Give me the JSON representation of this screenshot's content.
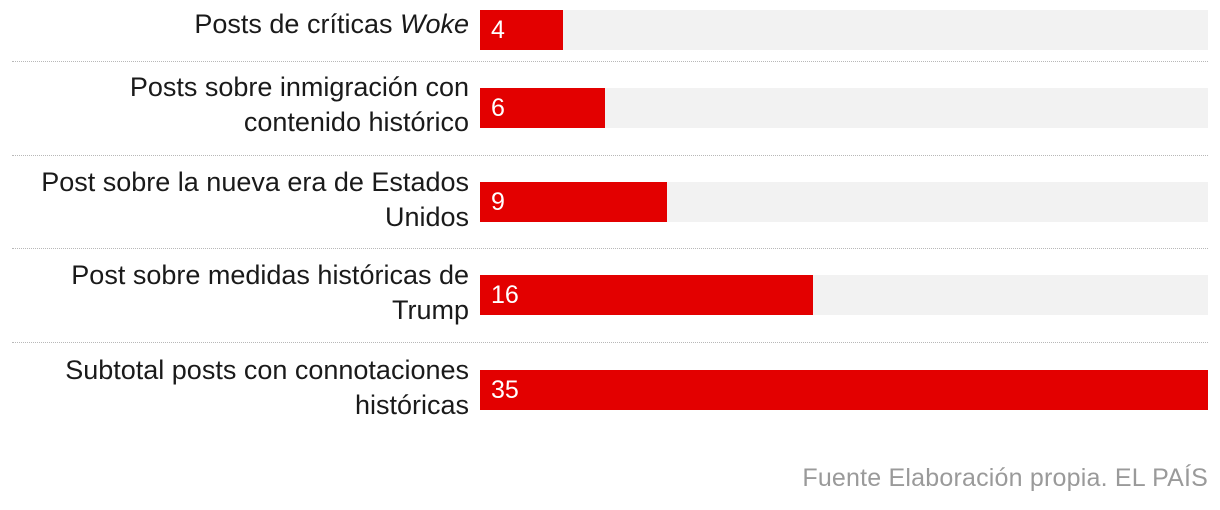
{
  "chart_data": {
    "type": "bar",
    "orientation": "horizontal",
    "categories": [
      {
        "text": "Posts de críticas ",
        "emphasis": "Woke"
      },
      {
        "text": "Posts sobre inmigración con contenido histórico",
        "emphasis": ""
      },
      {
        "text": "Post sobre la nueva era de Estados Unidos",
        "emphasis": ""
      },
      {
        "text": "Post sobre medidas históricas de Trump",
        "emphasis": ""
      },
      {
        "text": "Subtotal posts con connotaciones históricas",
        "emphasis": ""
      }
    ],
    "values": [
      4,
      6,
      9,
      16,
      35
    ],
    "xlim": [
      0,
      35
    ],
    "bar_color": "#e30000",
    "track_color": "#f2f2f2",
    "grid": false,
    "legend": "none"
  },
  "source": "Fuente Elaboración propia. EL PAÍS"
}
